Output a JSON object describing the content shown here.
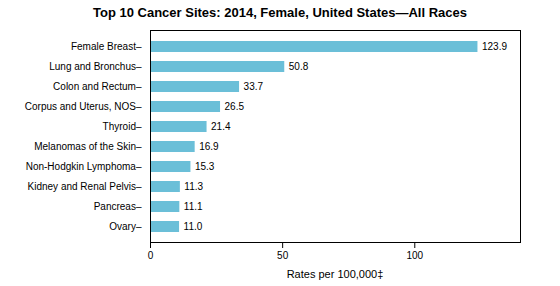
{
  "chart_data": {
    "type": "bar",
    "orientation": "horizontal",
    "title": "Top 10 Cancer Sites: 2014, Female, United States—All Races",
    "xlabel": "Rates per 100,000‡",
    "categories": [
      "Ovary–",
      "Pancreas–",
      "Kidney and Renal Pelvis–",
      "Non-Hodgkin Lymphoma–",
      "Melanomas of the Skin–",
      "Thyroid–",
      "Corpus and Uterus, NOS–",
      "Colon and Rectum–",
      "Lung and Bronchus–",
      "Female Breast–"
    ],
    "values": [
      11.0,
      11.1,
      11.3,
      15.3,
      16.9,
      21.4,
      26.5,
      33.7,
      50.8,
      123.9
    ],
    "value_labels": [
      "11.0",
      "11.1",
      "11.3",
      "15.3",
      "16.9",
      "21.4",
      "26.5",
      "33.7",
      "50.8",
      "123.9"
    ],
    "data_labels": true,
    "color": "#6bbfd8",
    "xlim": [
      0,
      140
    ],
    "xticks": [
      0,
      50,
      100
    ],
    "grid": false
  }
}
